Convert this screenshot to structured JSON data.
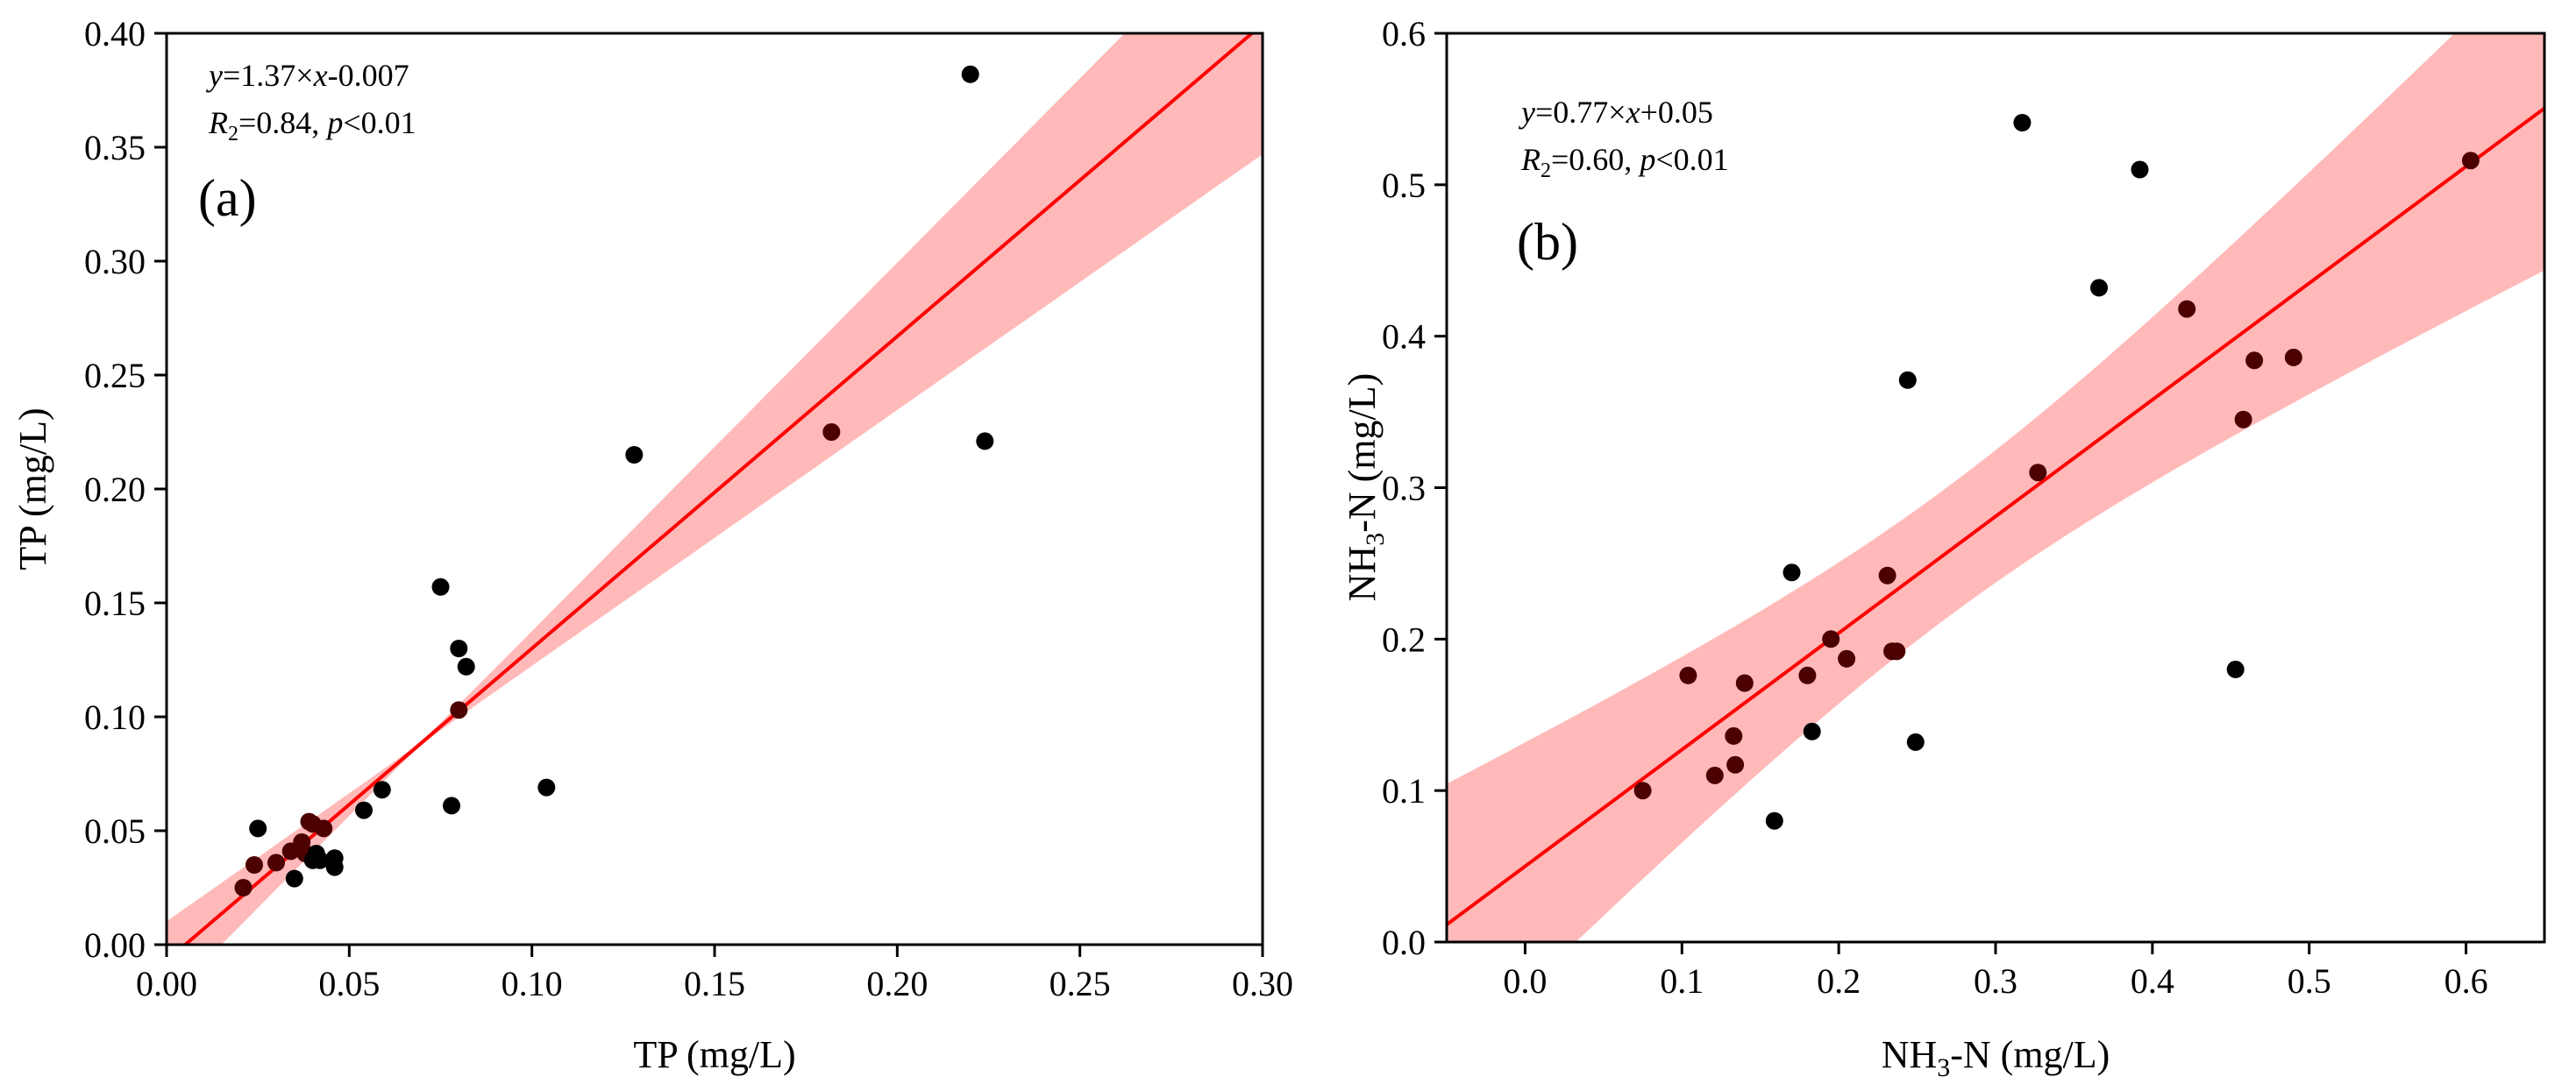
{
  "chart_data": [
    {
      "type": "scatter",
      "panel_label": "(a)",
      "xlabel": "TP (mg/L)",
      "ylabel": "TP (mg/L)",
      "xlim": [
        0.0,
        0.3
      ],
      "ylim": [
        0.0,
        0.4
      ],
      "x_ticks": [
        "0.00",
        "0.05",
        "0.10",
        "0.15",
        "0.20",
        "0.25",
        "0.30"
      ],
      "y_ticks": [
        "0.00",
        "0.05",
        "0.10",
        "0.15",
        "0.20",
        "0.25",
        "0.30",
        "0.35",
        "0.40"
      ],
      "fit": {
        "slope": 1.37,
        "intercept": -0.007
      },
      "band_halfwidth_at_ends": [
        0.008,
        0.055
      ],
      "equation": {
        "y": "y",
        "eq1": "=1.37×",
        "x": "x",
        "eq2": "-0.007"
      },
      "stats": {
        "r": "R",
        "sub": "2",
        "r_val": "=0.84, ",
        "p": "p",
        "p_val": "<0.01"
      },
      "x": [
        0.021,
        0.024,
        0.025,
        0.03,
        0.034,
        0.035,
        0.037,
        0.038,
        0.039,
        0.04,
        0.04,
        0.041,
        0.042,
        0.043,
        0.046,
        0.046,
        0.054,
        0.059,
        0.075,
        0.078,
        0.08,
        0.08,
        0.082,
        0.104,
        0.128,
        0.182,
        0.22,
        0.224
      ],
      "y": [
        0.025,
        0.035,
        0.051,
        0.036,
        0.041,
        0.029,
        0.045,
        0.04,
        0.054,
        0.037,
        0.053,
        0.04,
        0.037,
        0.051,
        0.038,
        0.034,
        0.059,
        0.068,
        0.157,
        0.061,
        0.103,
        0.13,
        0.122,
        0.069,
        0.215,
        0.225,
        0.382,
        0.221
      ]
    },
    {
      "type": "scatter",
      "panel_label": "(b)",
      "xlabel_main": "NH",
      "xlabel_sub": "3",
      "xlabel_rest": "-N (mg/L)",
      "ylabel_main": "NH",
      "ylabel_sub": "3",
      "ylabel_rest": "-N (mg/L)",
      "xlim": [
        -0.05,
        0.65
      ],
      "ylim": [
        0.0,
        0.6
      ],
      "x_ticks": [
        "0.0",
        "0.1",
        "0.2",
        "0.3",
        "0.4",
        "0.5",
        "0.6"
      ],
      "y_ticks": [
        "0.0",
        "0.1",
        "0.2",
        "0.3",
        "0.4",
        "0.5",
        "0.6"
      ],
      "fit": {
        "slope": 0.77,
        "intercept": 0.05
      },
      "band_halfwidth_at_ends": [
        0.093,
        0.107
      ],
      "equation": {
        "y": "y",
        "eq1": "=0.77×",
        "x": "x",
        "eq2": "+0.05"
      },
      "stats": {
        "r": "R",
        "sub": "2",
        "r_val": "=0.60, ",
        "p": "p",
        "p_val": "<0.01"
      },
      "x": [
        0.075,
        0.104,
        0.121,
        0.133,
        0.134,
        0.14,
        0.159,
        0.17,
        0.18,
        0.183,
        0.195,
        0.205,
        0.231,
        0.234,
        0.237,
        0.244,
        0.249,
        0.317,
        0.327,
        0.366,
        0.392,
        0.422,
        0.453,
        0.458,
        0.465,
        0.49,
        0.603
      ],
      "y": [
        0.1,
        0.176,
        0.11,
        0.136,
        0.117,
        0.171,
        0.08,
        0.244,
        0.176,
        0.139,
        0.2,
        0.187,
        0.242,
        0.192,
        0.192,
        0.371,
        0.132,
        0.541,
        0.31,
        0.432,
        0.51,
        0.418,
        0.18,
        0.345,
        0.384,
        0.386,
        0.516
      ]
    }
  ],
  "colors": {
    "point": "#000000",
    "point_in_band": "#4d0000",
    "fit_line": "#ff0000",
    "band": "#ffb9b9",
    "axis": "#000000"
  }
}
